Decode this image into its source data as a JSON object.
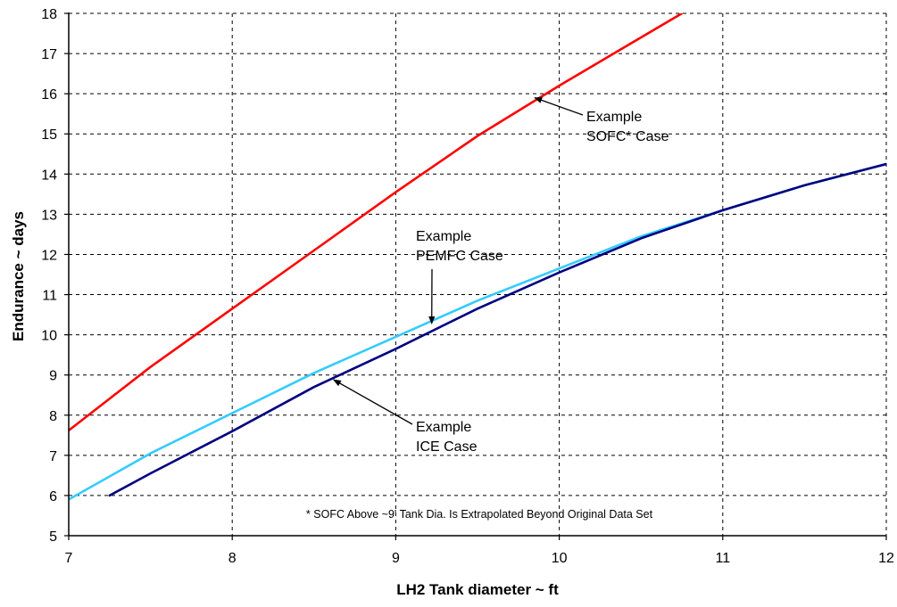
{
  "chart_data": {
    "type": "line",
    "xlabel": "LH2 Tank diameter ~ ft",
    "ylabel": "Endurance ~ days",
    "xlim": [
      7,
      12
    ],
    "ylim": [
      5,
      18
    ],
    "xticks": [
      7,
      8,
      9,
      10,
      11,
      12
    ],
    "yticks": [
      5,
      6,
      7,
      8,
      9,
      10,
      11,
      12,
      13,
      14,
      15,
      16,
      17,
      18
    ],
    "grid": true,
    "series": [
      {
        "color": "#ff0000",
        "x": [
          7.0,
          7.5,
          8.0,
          8.5,
          9.0,
          9.5,
          10.0,
          10.5,
          10.75
        ],
        "y": [
          7.62,
          9.2,
          10.65,
          12.1,
          13.55,
          14.95,
          16.2,
          17.4,
          18.0
        ]
      },
      {
        "color": "#33ccff",
        "x": [
          7.0,
          7.5,
          8.0,
          8.5,
          9.0,
          9.5,
          10.0,
          10.5,
          11.0,
          11.5,
          12.0
        ],
        "y": [
          5.9,
          7.05,
          8.05,
          9.05,
          9.95,
          10.85,
          11.65,
          12.45,
          13.1,
          13.72,
          14.25
        ]
      },
      {
        "color": "#000080",
        "x": [
          7.25,
          7.5,
          8.0,
          8.5,
          9.0,
          9.5,
          10.0,
          10.5,
          11.0,
          11.5,
          12.0
        ],
        "y": [
          6.0,
          6.55,
          7.6,
          8.7,
          9.65,
          10.65,
          11.55,
          12.4,
          13.1,
          13.72,
          14.25
        ]
      }
    ],
    "annotations": [
      {
        "lines": [
          "Example",
          "SOFC* Case"
        ],
        "arrow_to": [
          9.85,
          15.9
        ]
      },
      {
        "lines": [
          "Example",
          "PEMFC Case"
        ],
        "arrow_to": [
          9.22,
          10.28
        ]
      },
      {
        "lines": [
          "Example",
          "ICE Case"
        ],
        "arrow_to": [
          8.62,
          8.88
        ]
      }
    ],
    "footnote": "*  SOFC Above ~9' Tank Dia. Is Extrapolated Beyond Original Data Set"
  }
}
